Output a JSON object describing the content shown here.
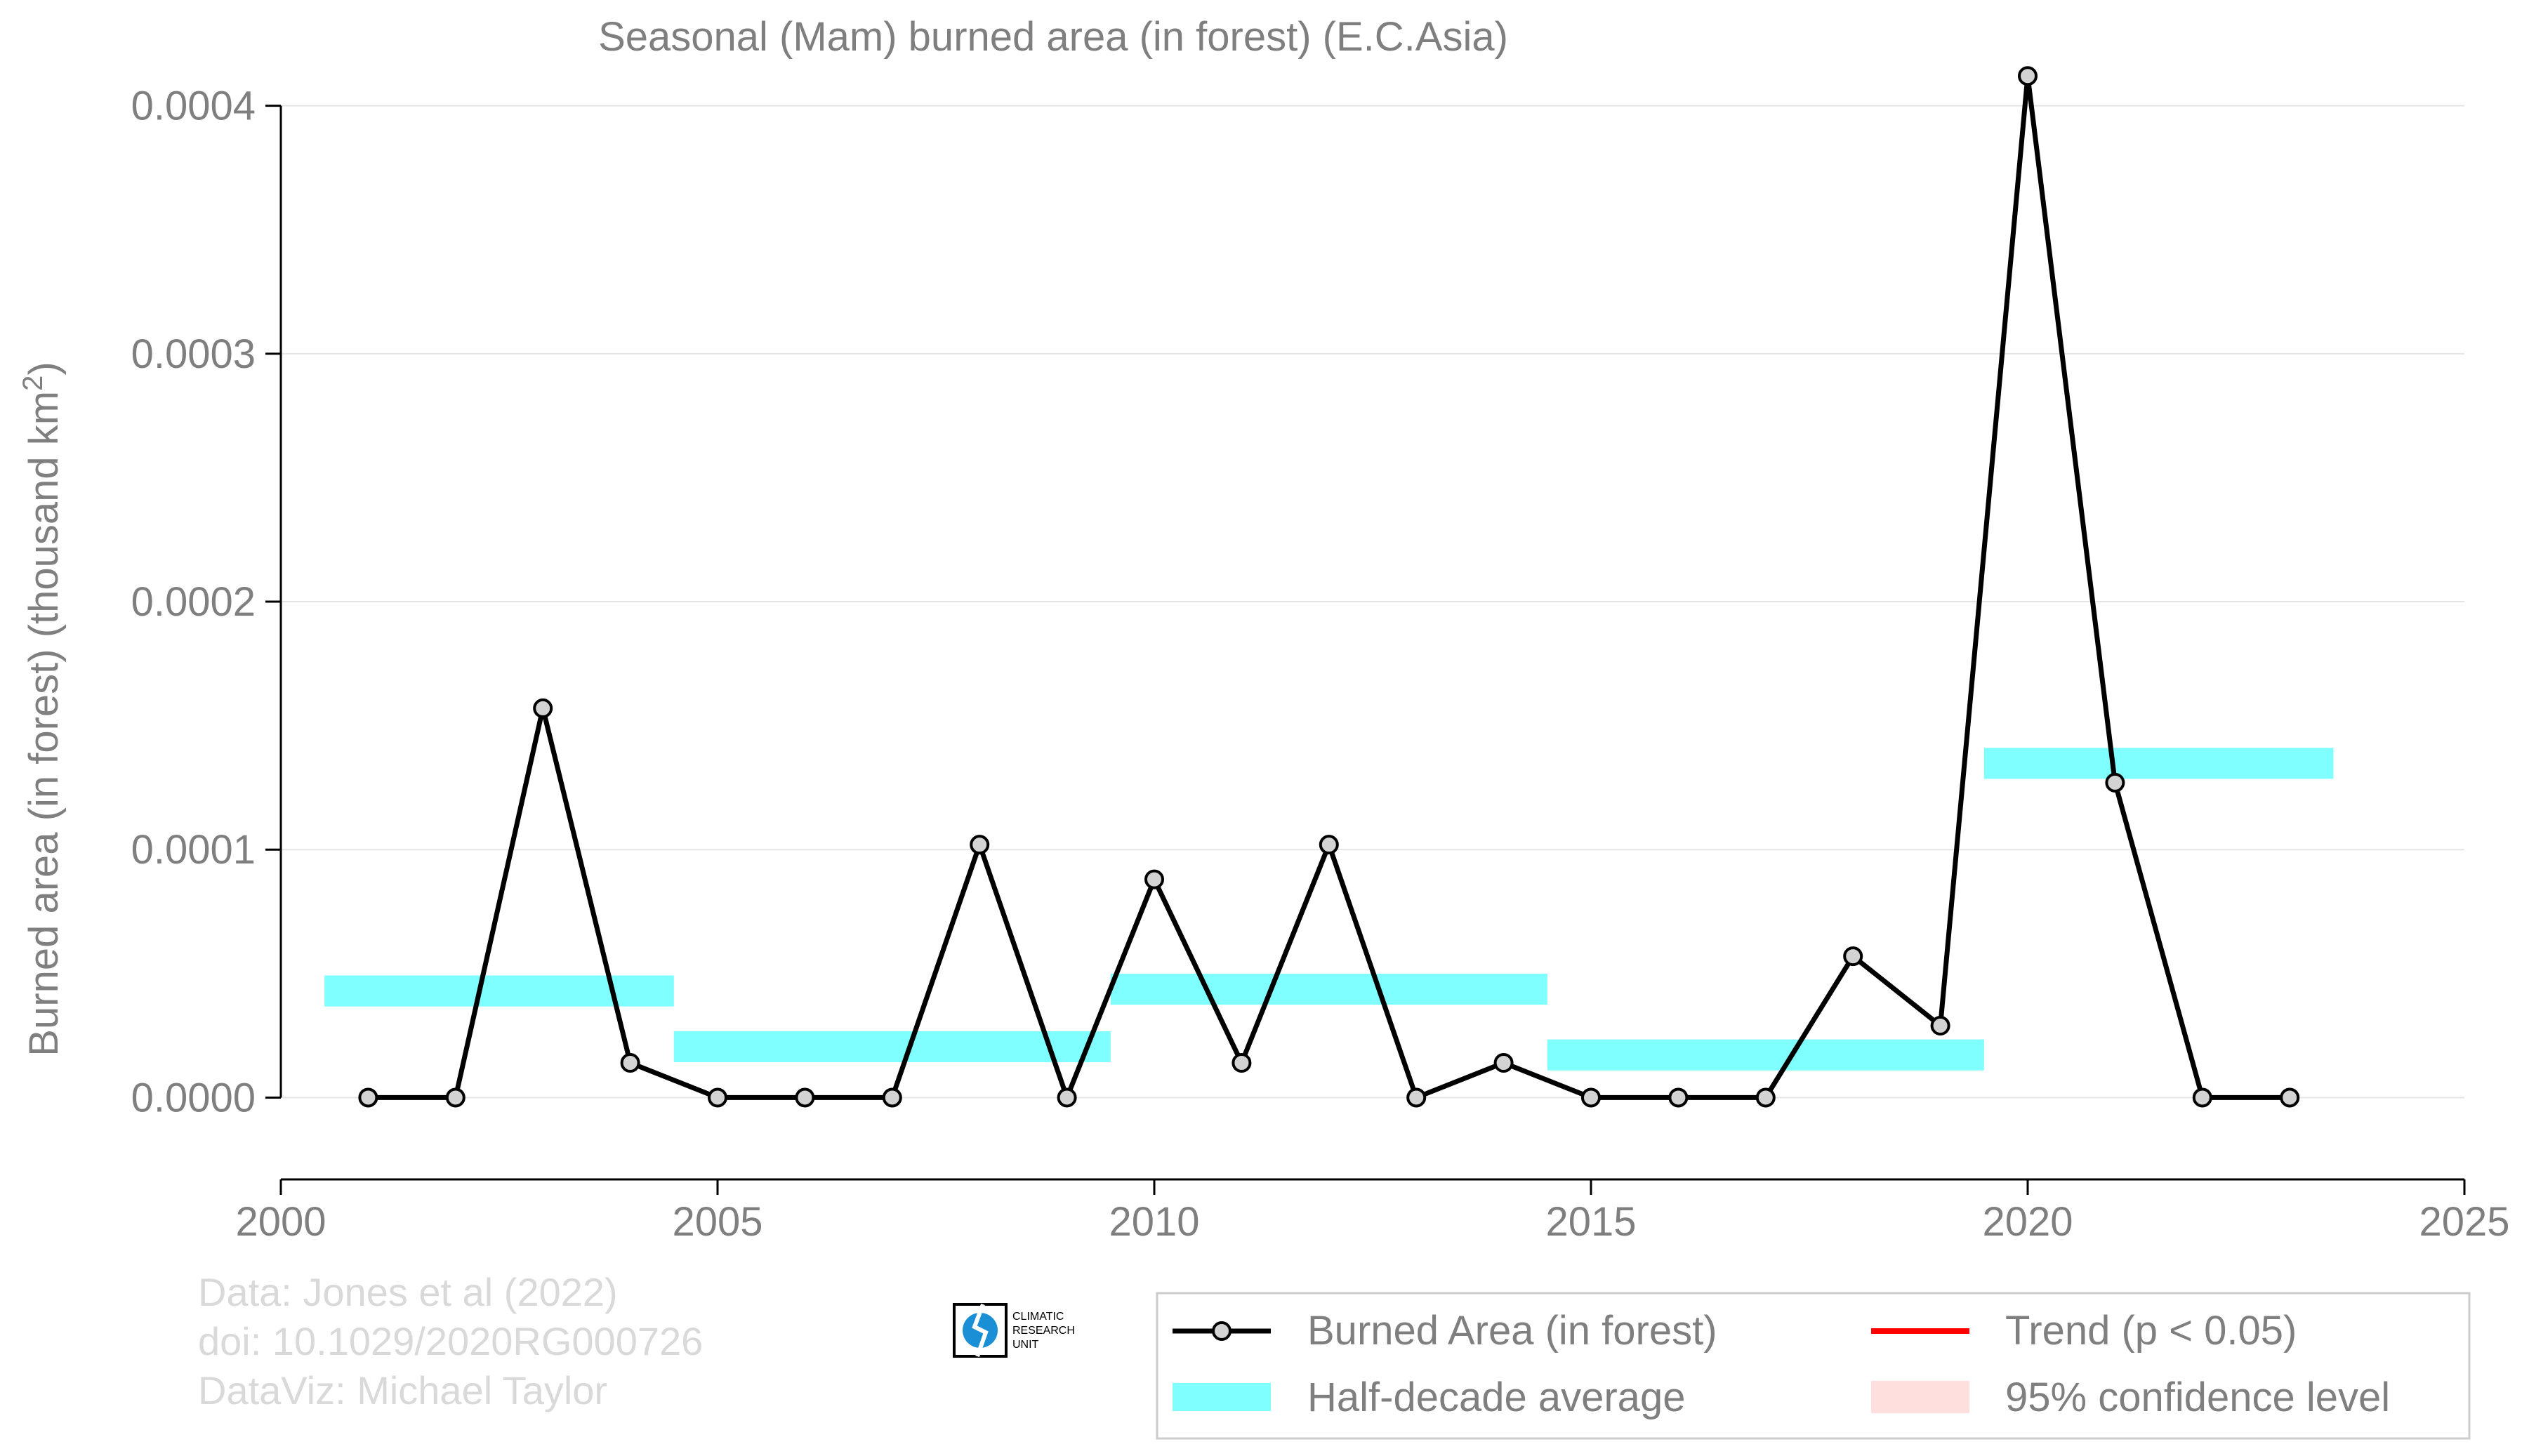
{
  "colors": {
    "series_line": "#000000",
    "marker_fill": "#d3d3d3",
    "half_decade": "#7fffff",
    "trend": "#ff0000",
    "confidence": "#ffdede",
    "text_gray": "#7f7f7f",
    "credit_gray": "#d9d9d9",
    "grid": "#e5e5e5",
    "logo_blue": "#1a8fd6"
  },
  "chart_data": {
    "type": "line",
    "title": "Seasonal (Mam) burned area (in forest) (E.C.Asia)",
    "ylabel_main": "Burned area (in forest) (thousand km",
    "ylabel_sup": "2",
    "ylabel_close": ")",
    "xlim": [
      2000,
      2025
    ],
    "ylim": [
      -3.3e-05,
      0.00042
    ],
    "x_ticks": [
      2000,
      2005,
      2010,
      2015,
      2020,
      2025
    ],
    "y_ticks": [
      0,
      0.0001,
      0.0002,
      0.0003,
      0.0004
    ],
    "y_tick_labels": [
      "0.0000",
      "0.0001",
      "0.0002",
      "0.0003",
      "0.0004"
    ],
    "grid": "horizontal",
    "legend_placement": "bottom-right",
    "series": [
      {
        "name": "Burned Area (in forest)",
        "x": [
          2001,
          2002,
          2003,
          2004,
          2005,
          2006,
          2007,
          2008,
          2009,
          2010,
          2011,
          2012,
          2013,
          2014,
          2015,
          2016,
          2017,
          2018,
          2019,
          2020,
          2021,
          2022,
          2023
        ],
        "y": [
          0,
          0,
          0.000157,
          1.4e-05,
          0,
          0,
          0,
          0.000102,
          0,
          8.8e-05,
          1.4e-05,
          0.000102,
          0,
          1.4e-05,
          0,
          0,
          0,
          5.7e-05,
          2.9e-05,
          0.000412,
          0.000127,
          0,
          0
        ]
      }
    ],
    "half_decade_average": [
      {
        "x_start": 2000.5,
        "x_end": 2004.5,
        "value": 4.3e-05
      },
      {
        "x_start": 2004.5,
        "x_end": 2009.5,
        "value": 2.05e-05
      },
      {
        "x_start": 2009.5,
        "x_end": 2014.5,
        "value": 4.37e-05
      },
      {
        "x_start": 2014.5,
        "x_end": 2019.5,
        "value": 1.72e-05
      },
      {
        "x_start": 2019.5,
        "x_end": 2023.5,
        "value": 0.0001348
      }
    ],
    "legend": [
      {
        "key": "series",
        "label": "Burned Area (in forest)"
      },
      {
        "key": "trend",
        "label": "Trend (p < 0.05)"
      },
      {
        "key": "half",
        "label": "Half-decade average"
      },
      {
        "key": "ci",
        "label": "95% confidence level"
      }
    ]
  },
  "credits": {
    "line1": "Data: Jones et al (2022)",
    "line2": "doi: 10.1029/2020RG000726",
    "line3": "DataViz: Michael Taylor"
  },
  "logo": {
    "line1": "CLIMATIC",
    "line2": "RESEARCH",
    "line3": "UNIT"
  }
}
